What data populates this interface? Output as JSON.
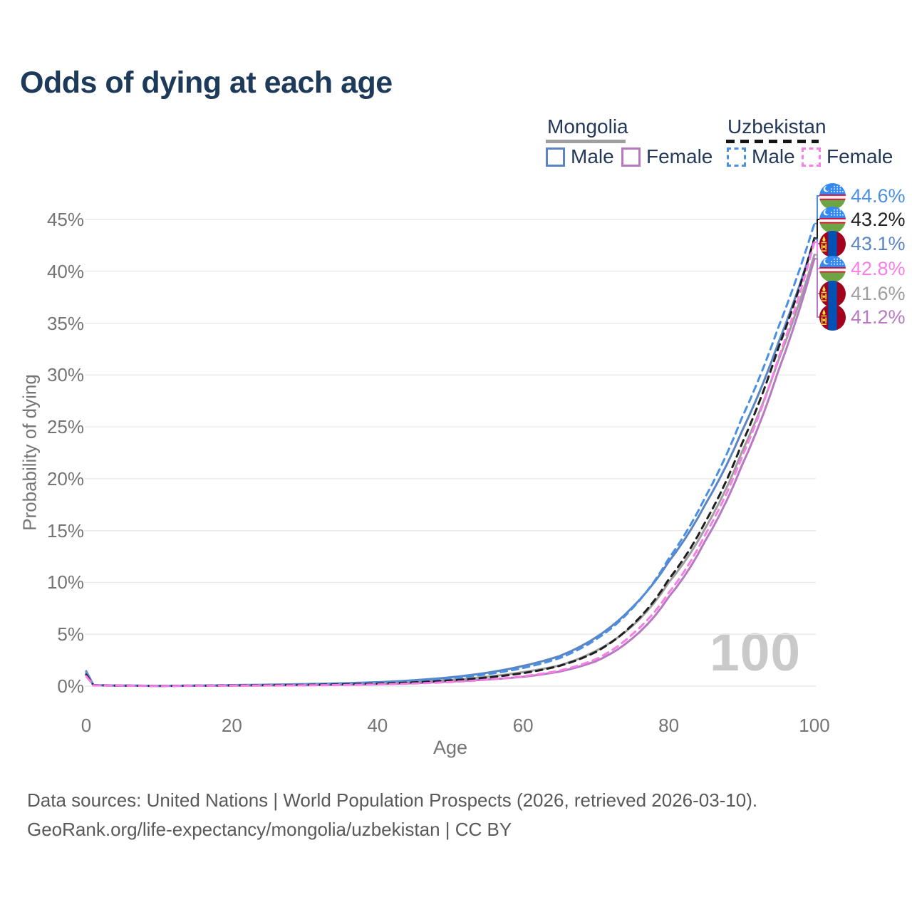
{
  "title": "Odds of dying at each age",
  "legend": {
    "groups": [
      {
        "country": "Mongolia",
        "style": "solid",
        "items": [
          {
            "label": "Male"
          },
          {
            "label": "Female"
          }
        ]
      },
      {
        "country": "Uzbekistan",
        "style": "dashed",
        "items": [
          {
            "label": "Male"
          },
          {
            "label": "Female"
          }
        ]
      }
    ]
  },
  "axes": {
    "y_title": "Probability of dying",
    "x_title": "Age",
    "y_ticks": [
      "0%",
      "5%",
      "10%",
      "15%",
      "20%",
      "25%",
      "30%",
      "35%",
      "40%",
      "45%"
    ],
    "x_ticks": [
      "0",
      "20",
      "40",
      "60",
      "80",
      "100"
    ]
  },
  "watermark": "100",
  "footer": {
    "line1": "Data sources: United Nations | World Population Prospects (2026, retrieved 2026-03-10).",
    "line2": "GeoRank.org/life-expectancy/mongolia/uzbekistan | CC BY"
  },
  "colors": {
    "title": "#1d3a5a",
    "axis_text": "#757575",
    "grid": "#e9e9e9",
    "watermark": "#c9c9c9",
    "footer": "#595959",
    "legend_text": "#24395a",
    "mongolia_underline": "#9e9e9e",
    "uzbekistan_underline": "#141414",
    "mongolia_male": "#5b84c4",
    "mongolia_female": "#b679c2",
    "mongolia_overall": "#9e9e9e",
    "uzbekistan_male": "#4a90e2",
    "uzbekistan_female": "#f97ee8",
    "uzbekistan_overall": "#1f1f1f"
  },
  "chart_data": {
    "type": "line",
    "title": "Odds of dying at each age",
    "xlabel": "Age",
    "ylabel": "Probability of dying",
    "xlim": [
      0,
      100
    ],
    "ylim_pct": [
      0,
      45
    ],
    "grid": "horizontal-only",
    "legend_position": "top-right",
    "hover_age_indicator": "100",
    "anchor_ages": [
      0,
      1,
      10,
      20,
      30,
      40,
      50,
      60,
      65,
      70,
      75,
      80,
      85,
      90,
      95,
      100
    ],
    "series": [
      {
        "name": "Uzbekistan Male",
        "country": "Uzbekistan",
        "sex": "Male",
        "color": "#4a90e2",
        "line": "dashed",
        "flag": "uz",
        "end_label": "44.6%",
        "end_value_pct": 44.6,
        "values_pct": [
          1.25,
          0.09,
          0.028,
          0.09,
          0.17,
          0.33,
          0.75,
          1.75,
          2.7,
          4.5,
          7.5,
          12.3,
          18.2,
          25.8,
          34.5,
          44.6
        ]
      },
      {
        "name": "Uzbekistan Overall",
        "country": "Uzbekistan",
        "sex": "Both",
        "color": "#1f1f1f",
        "line": "dashed",
        "flag": "uz",
        "end_label": "43.2%",
        "end_value_pct": 43.2,
        "values_pct": [
          1.1,
          0.08,
          0.024,
          0.065,
          0.12,
          0.24,
          0.55,
          1.25,
          1.95,
          3.3,
          5.9,
          10.3,
          15.8,
          23.3,
          32.5,
          43.2
        ]
      },
      {
        "name": "Mongolia Male",
        "country": "Mongolia",
        "sex": "Male",
        "color": "#5b84c4",
        "line": "solid",
        "flag": "mn",
        "end_label": "43.1%",
        "end_value_pct": 43.1,
        "values_pct": [
          1.45,
          0.1,
          0.03,
          0.1,
          0.2,
          0.38,
          0.85,
          1.95,
          2.9,
          4.7,
          7.6,
          12.0,
          17.5,
          24.5,
          33.0,
          43.1
        ]
      },
      {
        "name": "Uzbekistan Female",
        "country": "Uzbekistan",
        "sex": "Female",
        "color": "#f97ee8",
        "line": "dashed",
        "flag": "uz",
        "end_label": "42.8%",
        "end_value_pct": 42.8,
        "values_pct": [
          0.95,
          0.07,
          0.02,
          0.045,
          0.08,
          0.16,
          0.4,
          0.95,
          1.5,
          2.6,
          5.0,
          9.0,
          14.6,
          22.0,
          31.5,
          42.8
        ]
      },
      {
        "name": "Mongolia Overall",
        "country": "Mongolia",
        "sex": "Both",
        "color": "#9e9e9e",
        "line": "solid",
        "flag": "mn",
        "end_label": "41.6%",
        "end_value_pct": 41.6,
        "values_pct": [
          1.3,
          0.09,
          0.027,
          0.075,
          0.14,
          0.27,
          0.6,
          1.35,
          2.0,
          3.4,
          5.8,
          10.0,
          15.2,
          22.5,
          31.3,
          41.6
        ]
      },
      {
        "name": "Mongolia Female",
        "country": "Mongolia",
        "sex": "Female",
        "color": "#b679c2",
        "line": "solid",
        "flag": "mn",
        "end_label": "41.2%",
        "end_value_pct": 41.2,
        "values_pct": [
          1.15,
          0.08,
          0.022,
          0.05,
          0.09,
          0.18,
          0.45,
          0.9,
          1.4,
          2.4,
          4.6,
          8.6,
          14.0,
          21.2,
          30.3,
          41.2
        ]
      }
    ]
  }
}
